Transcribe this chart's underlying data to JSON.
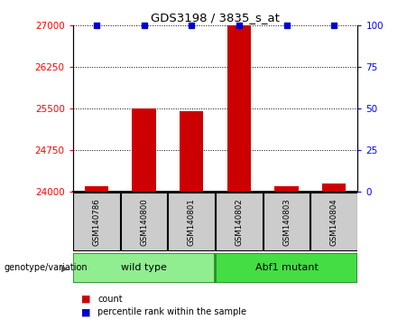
{
  "title": "GDS3198 / 3835_s_at",
  "samples": [
    "GSM140786",
    "GSM140800",
    "GSM140801",
    "GSM140802",
    "GSM140803",
    "GSM140804"
  ],
  "count_values": [
    24100,
    25500,
    25450,
    27000,
    24100,
    24150
  ],
  "percentile_values": [
    100,
    100,
    100,
    100,
    100,
    100
  ],
  "percentile_show": [
    true,
    true,
    true,
    true,
    true,
    true
  ],
  "ylim_left": [
    24000,
    27000
  ],
  "ylim_right": [
    0,
    100
  ],
  "yticks_left": [
    24000,
    24750,
    25500,
    26250,
    27000
  ],
  "yticks_right": [
    0,
    25,
    50,
    75,
    100
  ],
  "groups": [
    {
      "label": "wild type",
      "indices": [
        0,
        1,
        2
      ],
      "color": "#90EE90"
    },
    {
      "label": "Abf1 mutant",
      "indices": [
        3,
        4,
        5
      ],
      "color": "#44DD44"
    }
  ],
  "group_label": "genotype/variation",
  "bar_color": "#CC0000",
  "percentile_color": "#0000CC",
  "bar_width": 0.5,
  "background_color": "#ffffff",
  "plot_bg_color": "#ffffff",
  "sample_box_color": "#cccccc",
  "legend_items": [
    "count",
    "percentile rank within the sample"
  ]
}
